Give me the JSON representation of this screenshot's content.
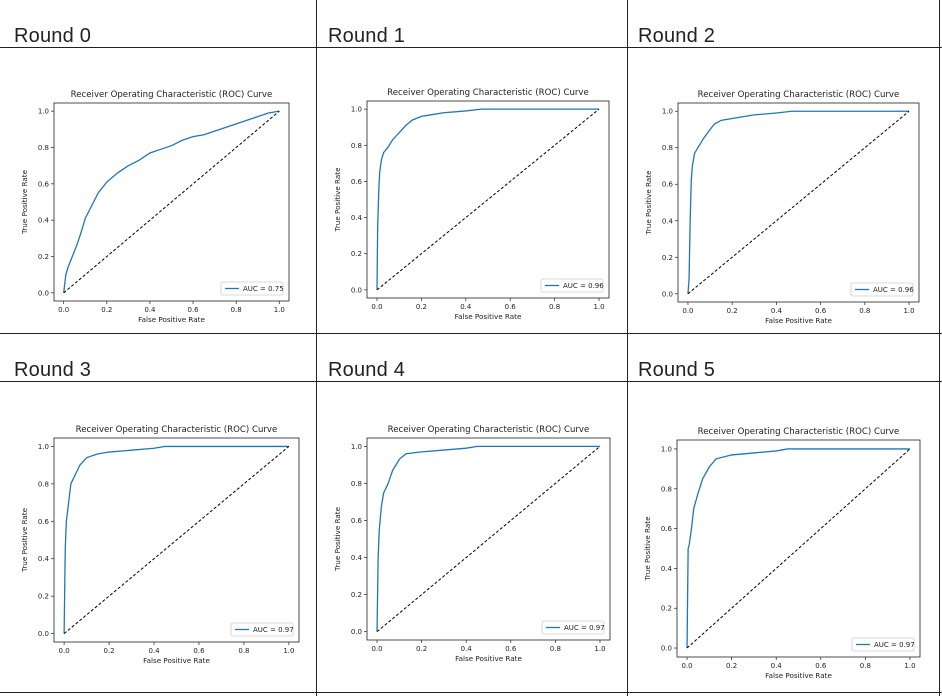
{
  "chart_data": [
    {
      "type": "line",
      "round_label": "Round 0",
      "title": "Receiver Operating Characteristic (ROC) Curve",
      "xlabel": "False Positive Rate",
      "ylabel": "True Positive Rate",
      "xlim": [
        0,
        1
      ],
      "ylim": [
        0,
        1
      ],
      "xticks": [
        "0.0",
        "0.2",
        "0.4",
        "0.6",
        "0.8",
        "1.0"
      ],
      "yticks": [
        "0.0",
        "0.2",
        "0.4",
        "0.6",
        "0.8",
        "1.0"
      ],
      "legend": "lower-right",
      "series": [
        {
          "name": "AUC = 0.75",
          "color": "#1f77b4",
          "x": [
            0,
            0.01,
            0.02,
            0.04,
            0.06,
            0.08,
            0.1,
            0.13,
            0.16,
            0.2,
            0.25,
            0.3,
            0.35,
            0.4,
            0.45,
            0.5,
            0.55,
            0.6,
            0.65,
            0.7,
            0.75,
            0.8,
            0.85,
            0.9,
            0.95,
            1.0
          ],
          "y": [
            0,
            0.1,
            0.14,
            0.2,
            0.26,
            0.33,
            0.41,
            0.48,
            0.55,
            0.61,
            0.66,
            0.7,
            0.73,
            0.77,
            0.79,
            0.81,
            0.84,
            0.86,
            0.87,
            0.89,
            0.91,
            0.93,
            0.95,
            0.97,
            0.99,
            1.0
          ]
        },
        {
          "name": "chance",
          "color": "#000000",
          "dashed": true,
          "x": [
            0,
            1
          ],
          "y": [
            0,
            1
          ]
        }
      ]
    },
    {
      "type": "line",
      "round_label": "Round 1",
      "title": "Receiver Operating Characteristic (ROC) Curve",
      "xlabel": "False Positive Rate",
      "ylabel": "True Positive Rate",
      "xlim": [
        0,
        1
      ],
      "ylim": [
        0,
        1
      ],
      "xticks": [
        "0.0",
        "0.2",
        "0.4",
        "0.6",
        "0.8",
        "1.0"
      ],
      "yticks": [
        "0.0",
        "0.2",
        "0.4",
        "0.6",
        "0.8",
        "1.0"
      ],
      "legend": "lower-right",
      "series": [
        {
          "name": "AUC = 0.96",
          "color": "#1f77b4",
          "x": [
            0,
            0.003,
            0.008,
            0.012,
            0.02,
            0.03,
            0.05,
            0.07,
            0.1,
            0.13,
            0.16,
            0.2,
            0.25,
            0.3,
            0.4,
            0.47,
            0.6,
            0.8,
            1.0
          ],
          "y": [
            0,
            0.35,
            0.55,
            0.65,
            0.72,
            0.76,
            0.79,
            0.83,
            0.87,
            0.91,
            0.94,
            0.96,
            0.97,
            0.98,
            0.99,
            1.0,
            1.0,
            1.0,
            1.0
          ]
        },
        {
          "name": "chance",
          "color": "#000000",
          "dashed": true,
          "x": [
            0,
            1
          ],
          "y": [
            0,
            1
          ]
        }
      ]
    },
    {
      "type": "line",
      "round_label": "Round 2",
      "title": "Receiver Operating Characteristic (ROC) Curve",
      "xlabel": "False Positive Rate",
      "ylabel": "True Positive Rate",
      "xlim": [
        0,
        1
      ],
      "ylim": [
        0,
        1
      ],
      "xticks": [
        "0.0",
        "0.2",
        "0.4",
        "0.6",
        "0.8",
        "1.0"
      ],
      "yticks": [
        "0.0",
        "0.2",
        "0.4",
        "0.6",
        "0.8",
        "1.0"
      ],
      "legend": "lower-right",
      "series": [
        {
          "name": "AUC = 0.96",
          "color": "#1f77b4",
          "x": [
            0,
            0.005,
            0.01,
            0.015,
            0.02,
            0.03,
            0.05,
            0.07,
            0.1,
            0.12,
            0.15,
            0.2,
            0.3,
            0.4,
            0.47,
            0.6,
            0.8,
            1.0
          ],
          "y": [
            0,
            0.08,
            0.4,
            0.62,
            0.7,
            0.77,
            0.81,
            0.85,
            0.9,
            0.93,
            0.95,
            0.96,
            0.98,
            0.99,
            1.0,
            1.0,
            1.0,
            1.0
          ]
        },
        {
          "name": "chance",
          "color": "#000000",
          "dashed": true,
          "x": [
            0,
            1
          ],
          "y": [
            0,
            1
          ]
        }
      ]
    },
    {
      "type": "line",
      "round_label": "Round 3",
      "title": "Receiver Operating Characteristic (ROC) Curve",
      "xlabel": "False Positive Rate",
      "ylabel": "True Positive Rate",
      "xlim": [
        0,
        1
      ],
      "ylim": [
        0,
        1
      ],
      "xticks": [
        "0.0",
        "0.2",
        "0.4",
        "0.6",
        "0.8",
        "1.0"
      ],
      "yticks": [
        "0.0",
        "0.2",
        "0.4",
        "0.6",
        "0.8",
        "1.0"
      ],
      "legend": "lower-right",
      "series": [
        {
          "name": "AUC = 0.97",
          "color": "#1f77b4",
          "x": [
            0,
            0.005,
            0.01,
            0.02,
            0.03,
            0.05,
            0.07,
            0.1,
            0.15,
            0.2,
            0.3,
            0.4,
            0.45,
            0.6,
            0.8,
            1.0
          ],
          "y": [
            0,
            0.45,
            0.6,
            0.7,
            0.8,
            0.85,
            0.9,
            0.94,
            0.96,
            0.97,
            0.98,
            0.99,
            1.0,
            1.0,
            1.0,
            1.0
          ]
        },
        {
          "name": "chance",
          "color": "#000000",
          "dashed": true,
          "x": [
            0,
            1
          ],
          "y": [
            0,
            1
          ]
        }
      ]
    },
    {
      "type": "line",
      "round_label": "Round 4",
      "title": "Receiver Operating Characteristic (ROC) Curve",
      "xlabel": "False Positive Rate",
      "ylabel": "True Positive Rate",
      "xlim": [
        0,
        1
      ],
      "ylim": [
        0,
        1
      ],
      "xticks": [
        "0.0",
        "0.2",
        "0.4",
        "0.6",
        "0.8",
        "1.0"
      ],
      "yticks": [
        "0.0",
        "0.2",
        "0.4",
        "0.6",
        "0.8",
        "1.0"
      ],
      "legend": "lower-right",
      "series": [
        {
          "name": "AUC = 0.97",
          "color": "#1f77b4",
          "x": [
            0,
            0.005,
            0.01,
            0.02,
            0.03,
            0.05,
            0.07,
            0.1,
            0.13,
            0.2,
            0.3,
            0.4,
            0.45,
            0.6,
            0.8,
            1.0
          ],
          "y": [
            0,
            0.4,
            0.55,
            0.68,
            0.75,
            0.8,
            0.87,
            0.93,
            0.96,
            0.97,
            0.98,
            0.99,
            1.0,
            1.0,
            1.0,
            1.0
          ]
        },
        {
          "name": "chance",
          "color": "#000000",
          "dashed": true,
          "x": [
            0,
            1
          ],
          "y": [
            0,
            1
          ]
        }
      ]
    },
    {
      "type": "line",
      "round_label": "Round 5",
      "title": "Receiver Operating Characteristic (ROC) Curve",
      "xlabel": "False Positive Rate",
      "ylabel": "True Positive Rate",
      "xlim": [
        0,
        1
      ],
      "ylim": [
        0,
        1
      ],
      "xticks": [
        "0.0",
        "0.2",
        "0.4",
        "0.6",
        "0.8",
        "1.0"
      ],
      "yticks": [
        "0.0",
        "0.2",
        "0.4",
        "0.6",
        "0.8",
        "1.0"
      ],
      "legend": "lower-right",
      "series": [
        {
          "name": "AUC = 0.97",
          "color": "#1f77b4",
          "x": [
            0,
            0.005,
            0.01,
            0.02,
            0.03,
            0.05,
            0.07,
            0.1,
            0.13,
            0.2,
            0.3,
            0.4,
            0.45,
            0.6,
            0.8,
            1.0
          ],
          "y": [
            0,
            0.5,
            0.52,
            0.6,
            0.7,
            0.78,
            0.85,
            0.91,
            0.95,
            0.97,
            0.98,
            0.99,
            1.0,
            1.0,
            1.0,
            1.0
          ]
        },
        {
          "name": "chance",
          "color": "#000000",
          "dashed": true,
          "x": [
            0,
            1
          ],
          "y": [
            0,
            1
          ]
        }
      ]
    }
  ]
}
